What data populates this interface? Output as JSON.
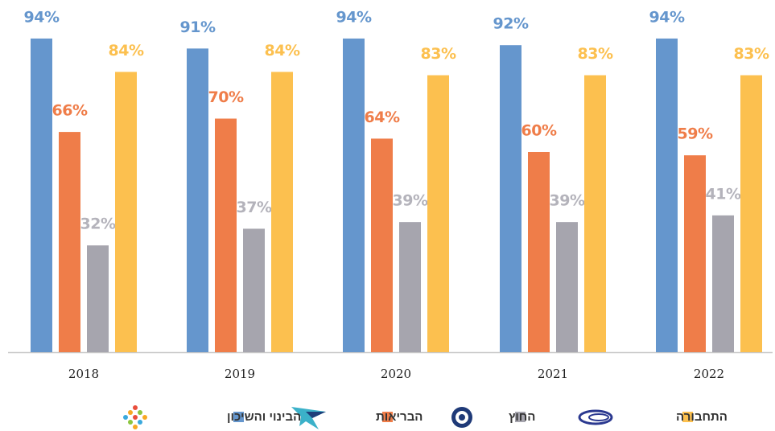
{
  "chart_data": {
    "type": "bar",
    "categories": [
      "2018",
      "2019",
      "2020",
      "2021",
      "2022"
    ],
    "ylim": [
      0,
      100
    ],
    "series": [
      {
        "name": "הבינוי והשיכון",
        "color": "#6596cd",
        "label_color": "#6596cd",
        "values": [
          94,
          91,
          94,
          92,
          94
        ],
        "value_labels": [
          "94%",
          "91%",
          "94%",
          "92%",
          "94%"
        ]
      },
      {
        "name": "הבריאות",
        "color": "#ef7d49",
        "label_color": "#ef7d49",
        "values": [
          66,
          70,
          64,
          60,
          59
        ],
        "value_labels": [
          "66%",
          "70%",
          "64%",
          "60%",
          "59%"
        ]
      },
      {
        "name": "החוץ",
        "color": "#a6a5ae",
        "label_color": "#b4b3bb",
        "values": [
          32,
          37,
          39,
          39,
          41
        ],
        "value_labels": [
          "32%",
          "37%",
          "39%",
          "39%",
          "41%"
        ]
      },
      {
        "name": "התחבורה",
        "color": "#fcc04f",
        "label_color": "#fcc04f",
        "values": [
          84,
          84,
          83,
          83,
          83
        ],
        "value_labels": [
          "84%",
          "84%",
          "83%",
          "83%",
          "83%"
        ]
      }
    ]
  }
}
